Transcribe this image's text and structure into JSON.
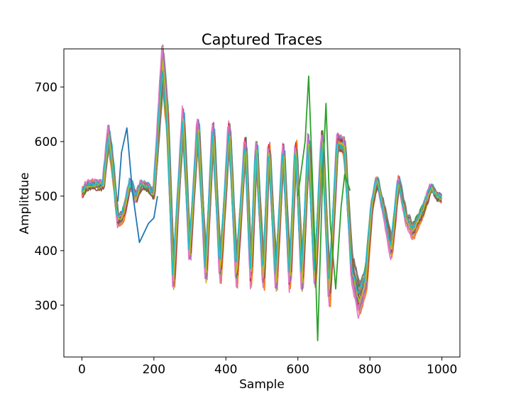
{
  "chart_data": {
    "type": "line",
    "title": "Captured Traces",
    "xlabel": "Sample",
    "ylabel": "Amplitdue",
    "xlim": [
      -50,
      1050
    ],
    "ylim": [
      205,
      770
    ],
    "xticks": [
      0,
      200,
      400,
      600,
      800,
      1000
    ],
    "yticks": [
      300,
      400,
      500,
      600,
      700
    ],
    "grid": false,
    "legend": "none",
    "n_samples": 1000,
    "palette": [
      "#1f77b4",
      "#ff7f0e",
      "#2ca02c",
      "#d62728",
      "#9467bd",
      "#8c564b",
      "#e377c2",
      "#7f7f7f",
      "#bcbd22",
      "#17becf"
    ],
    "series_note_values": "Approximate mean trace envelope read from the plot (sample, amplitude).",
    "mean_trace": [
      [
        0,
        505
      ],
      [
        10,
        515
      ],
      [
        25,
        520
      ],
      [
        45,
        520
      ],
      [
        60,
        520
      ],
      [
        75,
        610
      ],
      [
        85,
        560
      ],
      [
        100,
        455
      ],
      [
        115,
        465
      ],
      [
        135,
        525
      ],
      [
        150,
        495
      ],
      [
        165,
        520
      ],
      [
        185,
        515
      ],
      [
        200,
        500
      ],
      [
        212,
        610
      ],
      [
        225,
        740
      ],
      [
        238,
        640
      ],
      [
        255,
        345
      ],
      [
        268,
        500
      ],
      [
        282,
        640
      ],
      [
        300,
        395
      ],
      [
        323,
        630
      ],
      [
        345,
        360
      ],
      [
        365,
        625
      ],
      [
        385,
        360
      ],
      [
        410,
        625
      ],
      [
        430,
        355
      ],
      [
        455,
        600
      ],
      [
        470,
        350
      ],
      [
        485,
        595
      ],
      [
        505,
        345
      ],
      [
        520,
        590
      ],
      [
        540,
        345
      ],
      [
        560,
        590
      ],
      [
        578,
        345
      ],
      [
        595,
        595
      ],
      [
        612,
        345
      ],
      [
        630,
        595
      ],
      [
        648,
        350
      ],
      [
        668,
        610
      ],
      [
        688,
        320
      ],
      [
        710,
        595
      ],
      [
        730,
        590
      ],
      [
        750,
        370
      ],
      [
        770,
        310
      ],
      [
        790,
        350
      ],
      [
        805,
        480
      ],
      [
        820,
        530
      ],
      [
        840,
        470
      ],
      [
        860,
        400
      ],
      [
        880,
        530
      ],
      [
        900,
        460
      ],
      [
        920,
        435
      ],
      [
        945,
        470
      ],
      [
        970,
        515
      ],
      [
        985,
        500
      ],
      [
        1000,
        495
      ]
    ],
    "outlier_traces": [
      {
        "color_index": 0,
        "points": [
          [
            100,
            490
          ],
          [
            110,
            580
          ],
          [
            125,
            625
          ],
          [
            140,
            510
          ],
          [
            160,
            415
          ],
          [
            185,
            450
          ],
          [
            200,
            460
          ],
          [
            210,
            500
          ]
        ]
      },
      {
        "color_index": 2,
        "points": [
          [
            600,
            500
          ],
          [
            620,
            600
          ],
          [
            630,
            720
          ],
          [
            645,
            450
          ],
          [
            655,
            235
          ],
          [
            668,
            520
          ],
          [
            678,
            670
          ],
          [
            690,
            450
          ],
          [
            705,
            330
          ],
          [
            720,
            480
          ],
          [
            730,
            540
          ],
          [
            745,
            510
          ]
        ]
      }
    ]
  }
}
